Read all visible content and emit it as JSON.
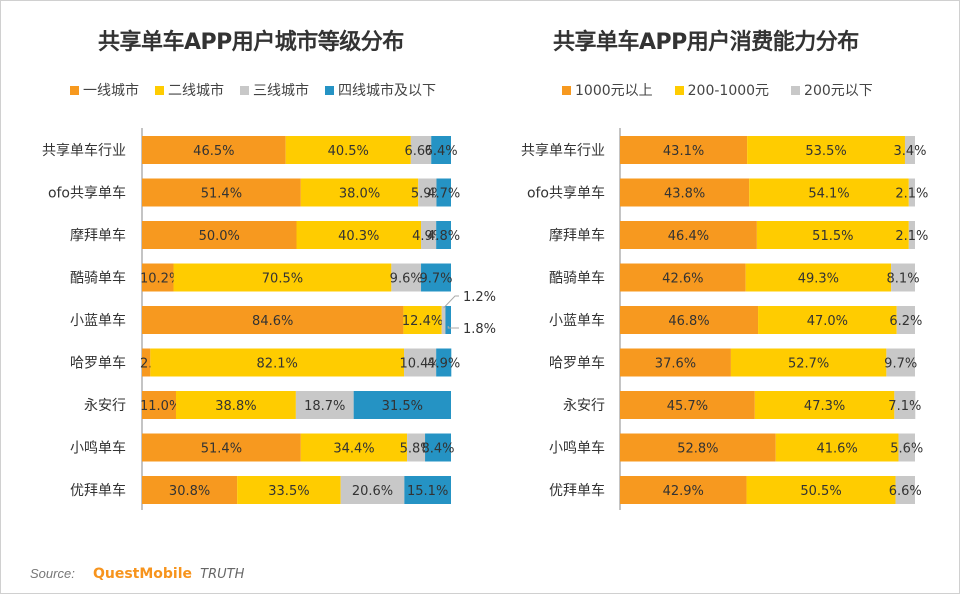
{
  "colors": {
    "orange": "#f7991f",
    "yellow": "#ffcc00",
    "gray": "#c8c8c8",
    "blue": "#2593c4",
    "text": "#333333",
    "axis": "#888888"
  },
  "source": {
    "label": "Source:",
    "brand": "QuestMobile",
    "suffix": "TRUTH"
  },
  "chart_data": [
    {
      "type": "bar",
      "orientation": "horizontal",
      "stacked": "percent",
      "title": "共享单车APP用户城市等级分布",
      "legend_position": "top",
      "categories": [
        "共享单车行业",
        "ofo共享单车",
        "摩拜单车",
        "酷骑单车",
        "小蓝单车",
        "哈罗单车",
        "永安行",
        "小鸣单车",
        "优拜单车"
      ],
      "series": [
        {
          "name": "一线城市",
          "color": "#f7991f",
          "values": [
            46.5,
            51.4,
            50.0,
            10.2,
            84.6,
            2.7,
            11.0,
            51.4,
            30.8
          ]
        },
        {
          "name": "二线城市",
          "color": "#ffcc00",
          "values": [
            40.5,
            38.0,
            40.3,
            70.5,
            12.4,
            82.1,
            38.8,
            34.4,
            33.5
          ]
        },
        {
          "name": "三线城市",
          "color": "#c8c8c8",
          "values": [
            6.6,
            5.9,
            4.9,
            9.6,
            1.2,
            10.4,
            18.7,
            5.8,
            20.6
          ]
        },
        {
          "name": "四线城市及以下",
          "color": "#2593c4",
          "values": [
            6.4,
            4.7,
            4.8,
            9.7,
            1.8,
            4.9,
            31.5,
            8.4,
            15.1
          ]
        }
      ],
      "xlim": [
        0,
        100
      ],
      "grid": false
    },
    {
      "type": "bar",
      "orientation": "horizontal",
      "stacked": "percent",
      "title": "共享单车APP用户消费能力分布",
      "legend_position": "top",
      "categories": [
        "共享单车行业",
        "ofo共享单车",
        "摩拜单车",
        "酷骑单车",
        "小蓝单车",
        "哈罗单车",
        "永安行",
        "小鸣单车",
        "优拜单车"
      ],
      "series": [
        {
          "name": "1000元以上",
          "color": "#f7991f",
          "values": [
            43.1,
            43.8,
            46.4,
            42.6,
            46.8,
            37.6,
            45.7,
            52.8,
            42.9
          ]
        },
        {
          "name": "200-1000元",
          "color": "#ffcc00",
          "values": [
            53.5,
            54.1,
            51.5,
            49.3,
            47.0,
            52.7,
            47.3,
            41.6,
            50.5
          ]
        },
        {
          "name": "200元以下",
          "color": "#c8c8c8",
          "values": [
            3.4,
            2.1,
            2.1,
            8.1,
            6.2,
            9.7,
            7.1,
            5.6,
            6.6
          ]
        }
      ],
      "xlim": [
        0,
        100
      ],
      "grid": false
    }
  ]
}
